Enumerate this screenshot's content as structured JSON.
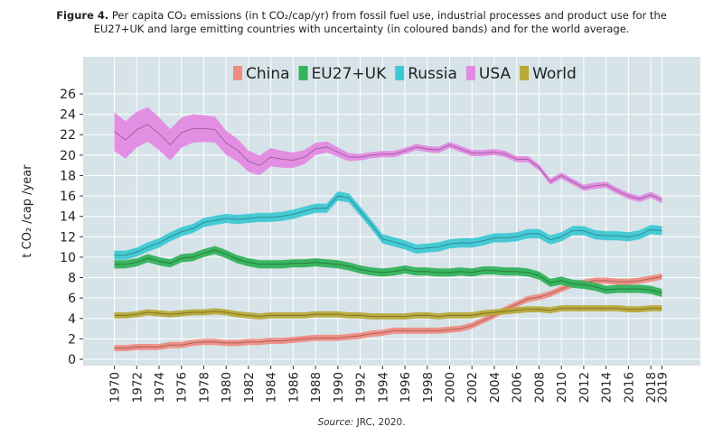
{
  "figure": {
    "label": "Figure 4.",
    "caption_line1": "Per capita CO₂ emissions (in t CO₂/cap/yr) from fossil fuel use, industrial processes and product use for the",
    "caption_line2": "EU27+UK and large emitting countries with uncertainty (in coloured bands) and for the world average.",
    "source_label": "Source:",
    "source_text": "JRC, 2020."
  },
  "chart_data": {
    "type": "line",
    "title": "",
    "xlabel": "",
    "ylabel": "t CO₂ /cap /year",
    "ylim": [
      0,
      27
    ],
    "xlim": [
      1968.5,
      2020.5
    ],
    "yticks": [
      0,
      2,
      4,
      6,
      8,
      10,
      12,
      14,
      16,
      18,
      20,
      22,
      24,
      26
    ],
    "xticks": [
      1970,
      1972,
      1974,
      1976,
      1978,
      1980,
      1982,
      1984,
      1986,
      1988,
      1990,
      1992,
      1994,
      1996,
      1998,
      2000,
      2002,
      2004,
      2006,
      2008,
      2010,
      2012,
      2014,
      2016,
      2018,
      2019
    ],
    "grid": true,
    "legend_position": "top",
    "x": [
      1970,
      1971,
      1972,
      1973,
      1974,
      1975,
      1976,
      1977,
      1978,
      1979,
      1980,
      1981,
      1982,
      1983,
      1984,
      1985,
      1986,
      1987,
      1988,
      1989,
      1990,
      1991,
      1992,
      1993,
      1994,
      1995,
      1996,
      1997,
      1998,
      1999,
      2000,
      2001,
      2002,
      2003,
      2004,
      2005,
      2006,
      2007,
      2008,
      2009,
      2010,
      2011,
      2012,
      2013,
      2014,
      2015,
      2016,
      2017,
      2018,
      2019
    ],
    "series": [
      {
        "name": "China",
        "color": "#f08c82",
        "values": [
          1.1,
          1.1,
          1.2,
          1.2,
          1.2,
          1.4,
          1.4,
          1.6,
          1.7,
          1.7,
          1.6,
          1.6,
          1.7,
          1.7,
          1.8,
          1.8,
          1.9,
          2.0,
          2.1,
          2.1,
          2.1,
          2.2,
          2.3,
          2.5,
          2.6,
          2.8,
          2.8,
          2.8,
          2.8,
          2.8,
          2.9,
          3.0,
          3.3,
          3.8,
          4.3,
          4.9,
          5.4,
          5.9,
          6.1,
          6.4,
          6.9,
          7.3,
          7.5,
          7.7,
          7.7,
          7.6,
          7.6,
          7.7,
          7.9,
          8.1
        ],
        "band": 0.3
      },
      {
        "name": "EU27+UK",
        "color": "#33b25a",
        "values": [
          9.3,
          9.3,
          9.5,
          9.9,
          9.6,
          9.4,
          9.9,
          10.0,
          10.4,
          10.7,
          10.3,
          9.8,
          9.5,
          9.3,
          9.3,
          9.3,
          9.4,
          9.4,
          9.5,
          9.4,
          9.3,
          9.1,
          8.8,
          8.6,
          8.5,
          8.6,
          8.8,
          8.6,
          8.6,
          8.5,
          8.5,
          8.6,
          8.5,
          8.7,
          8.7,
          8.6,
          8.6,
          8.5,
          8.2,
          7.5,
          7.7,
          7.4,
          7.3,
          7.1,
          6.8,
          6.9,
          6.9,
          6.9,
          6.8,
          6.5
        ],
        "band": 0.4
      },
      {
        "name": "Russia",
        "color": "#3ec8d5",
        "values": [
          10.2,
          10.2,
          10.5,
          11.0,
          11.4,
          12.0,
          12.5,
          12.8,
          13.4,
          13.6,
          13.8,
          13.7,
          13.8,
          13.9,
          13.9,
          14.0,
          14.2,
          14.5,
          14.8,
          14.8,
          16.0,
          15.8,
          14.5,
          13.2,
          11.8,
          11.5,
          11.2,
          10.8,
          10.9,
          11.0,
          11.3,
          11.4,
          11.4,
          11.6,
          11.9,
          11.9,
          12.0,
          12.3,
          12.3,
          11.7,
          12.0,
          12.6,
          12.6,
          12.2,
          12.1,
          12.1,
          12.0,
          12.2,
          12.7,
          12.6
        ],
        "band": 0.45
      },
      {
        "name": "USA",
        "color": "#e38ae3",
        "values": [
          22.3,
          21.5,
          22.5,
          23.0,
          22.1,
          21.0,
          22.2,
          22.6,
          22.6,
          22.5,
          21.2,
          20.5,
          19.4,
          19.0,
          19.8,
          19.6,
          19.5,
          19.8,
          20.6,
          20.8,
          20.3,
          19.8,
          19.8,
          20.0,
          20.1,
          20.1,
          20.4,
          20.8,
          20.6,
          20.5,
          21.0,
          20.6,
          20.2,
          20.2,
          20.3,
          20.1,
          19.6,
          19.6,
          18.8,
          17.4,
          18.0,
          17.4,
          16.8,
          17.0,
          17.1,
          16.5,
          16.0,
          15.7,
          16.1,
          15.6
        ],
        "band_start": 1.9,
        "band_end": 0.3
      },
      {
        "name": "World",
        "color": "#b8a938",
        "values": [
          4.3,
          4.3,
          4.4,
          4.6,
          4.5,
          4.4,
          4.5,
          4.6,
          4.6,
          4.7,
          4.6,
          4.4,
          4.3,
          4.2,
          4.3,
          4.3,
          4.3,
          4.3,
          4.4,
          4.4,
          4.4,
          4.3,
          4.3,
          4.2,
          4.2,
          4.2,
          4.2,
          4.3,
          4.3,
          4.2,
          4.3,
          4.3,
          4.3,
          4.5,
          4.6,
          4.7,
          4.8,
          4.9,
          4.9,
          4.8,
          5.0,
          5.0,
          5.0,
          5.0,
          5.0,
          5.0,
          4.9,
          4.9,
          5.0,
          5.0
        ],
        "band": 0.3
      }
    ]
  }
}
